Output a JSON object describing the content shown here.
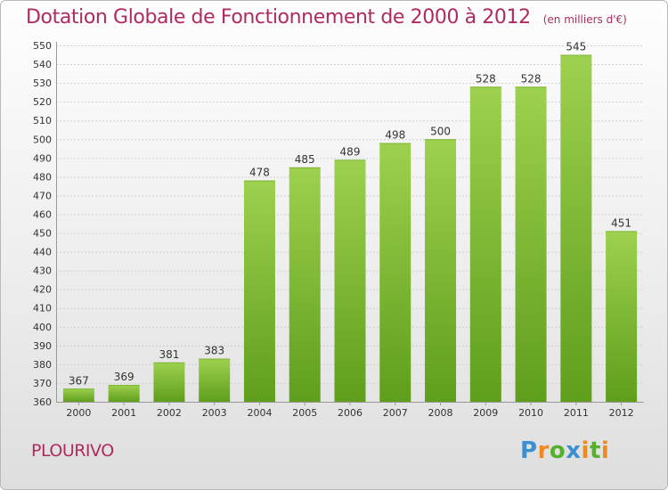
{
  "title": "Dotation Globale de Fonctionnement de 2000 à 2012",
  "subtitle": "(en milliers d'€)",
  "commune": "PLOURIVO",
  "logo": {
    "l1": "P",
    "l2": "r",
    "l3": "o",
    "l4": "x",
    "l5": "i",
    "l6": "t",
    "l7": "i"
  },
  "colors": {
    "title": "#b02a62",
    "bar_top": "#9dd14f",
    "bar_bottom": "#5f9e1b"
  },
  "chart_data": {
    "type": "bar",
    "categories": [
      "2000",
      "2001",
      "2002",
      "2003",
      "2004",
      "2005",
      "2006",
      "2007",
      "2008",
      "2009",
      "2010",
      "2011",
      "2012"
    ],
    "values": [
      367,
      369,
      381,
      383,
      478,
      485,
      489,
      498,
      500,
      528,
      528,
      545,
      451
    ],
    "title": "Dotation Globale de Fonctionnement de 2000 à 2012",
    "xlabel": "",
    "ylabel": "",
    "ylim": [
      360,
      550
    ],
    "yticks": [
      360,
      370,
      380,
      390,
      400,
      410,
      420,
      430,
      440,
      450,
      460,
      470,
      480,
      490,
      500,
      510,
      520,
      530,
      540,
      550
    ],
    "grid": true
  }
}
